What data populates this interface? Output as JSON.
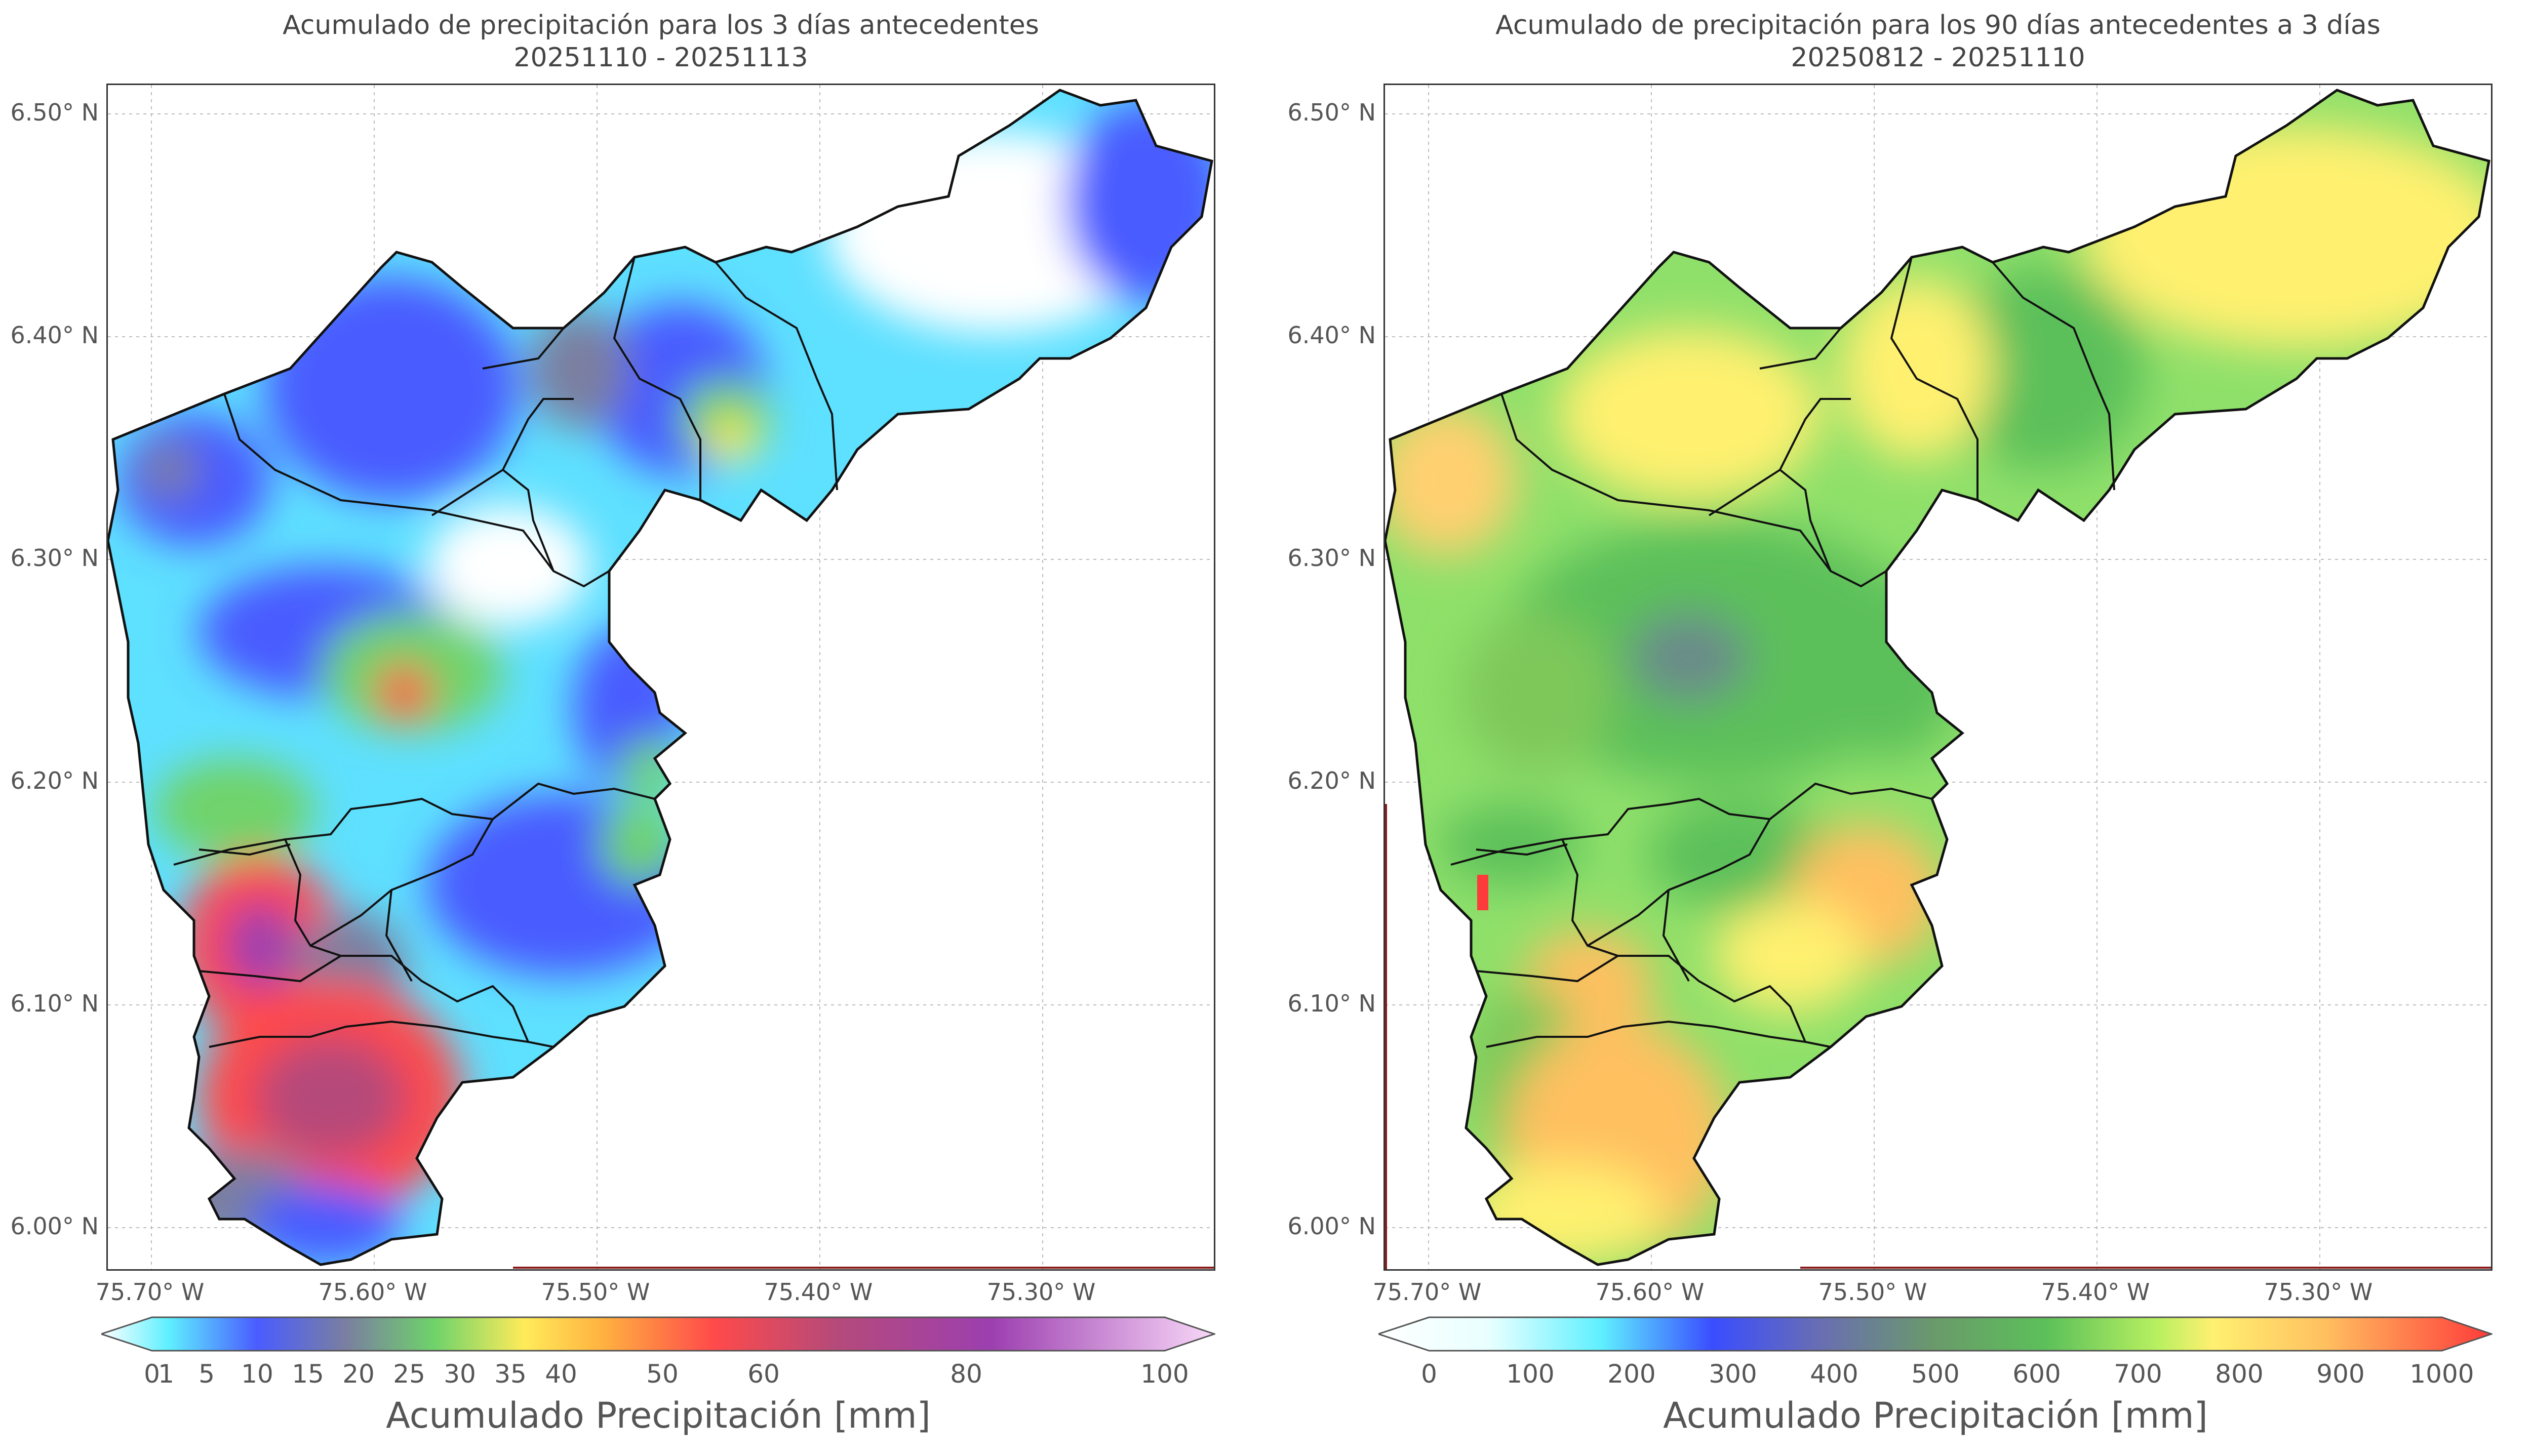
{
  "panels": [
    {
      "title_line1": "Acumulado de precipitación para los 3 días antecedentes",
      "title_line2": "20251110 - 20251113",
      "y_ticks": [
        "6.50° N",
        "6.40° N",
        "6.30° N",
        "6.20° N",
        "6.10° N",
        "6.00° N"
      ],
      "x_ticks": [
        "75.70° W",
        "75.60° W",
        "75.50° W",
        "75.40° W",
        "75.30° W"
      ],
      "colorbar": {
        "ticks": [
          "0",
          "1",
          "5",
          "10",
          "15",
          "20",
          "25",
          "30",
          "35",
          "40",
          "50",
          "60",
          "80",
          "100"
        ],
        "label": "Acumulado Precipitación [mm]",
        "colors": [
          "#ffffff",
          "#5ff0ff",
          "#4a5cff",
          "#7a7fa0",
          "#6fd36a",
          "#ffeb5a",
          "#ffb240",
          "#ff4a4a",
          "#b54a7a",
          "#9c3fb0",
          "#f8d8f8"
        ]
      }
    },
    {
      "title_line1": "Acumulado de precipitación para los 90 días antecedentes a 3 días",
      "title_line2": "20250812 - 20251110",
      "y_ticks": [
        "6.50° N",
        "6.40° N",
        "6.30° N",
        "6.20° N",
        "6.10° N",
        "6.00° N"
      ],
      "x_ticks": [
        "75.70° W",
        "75.60° W",
        "75.50° W",
        "75.40° W",
        "75.30° W"
      ],
      "colorbar": {
        "ticks": [
          "0",
          "100",
          "200",
          "300",
          "400",
          "500",
          "600",
          "700",
          "800",
          "900",
          "1000"
        ],
        "label": "Acumulado Precipitación [mm]",
        "colors": [
          "#ffffff",
          "#5ff0ff",
          "#2a6dff",
          "#5555e0",
          "#7a8a8a",
          "#5cc05a",
          "#9ee860",
          "#fff070",
          "#ffc060",
          "#ff9050",
          "#ff3a3a"
        ]
      }
    }
  ]
}
